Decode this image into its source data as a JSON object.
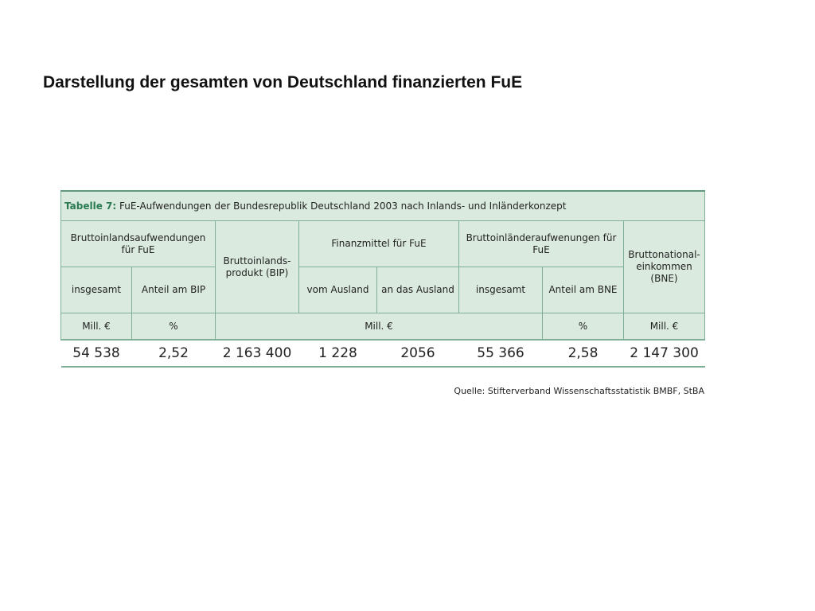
{
  "slide": {
    "title": "Darstellung der gesamten von Deutschland finanzierten FuE"
  },
  "table": {
    "caption_label": "Tabelle 7:",
    "caption_text": " FuE-Aufwendungen der Bundesrepublik Deutschland 2003 nach Inlands- und Inländerkonzept",
    "header": {
      "bruttoinland": "Bruttoinlandsaufwendungen für FuE",
      "bip": "Bruttoinlands-produkt (BIP)",
      "finanzmittel": "Finanzmittel für FuE",
      "bruttoinlaender": "Bruttoinländeraufwenungen für FuE",
      "bne": "Bruttonational-einkommen (BNE)",
      "insgesamt_1": "insgesamt",
      "anteil_bip": "Anteil am BIP",
      "vom_ausland": "vom Ausland",
      "an_das_ausland": "an das Ausland",
      "insgesamt_2": "insgesamt",
      "anteil_bne": "Anteil am BNE"
    },
    "units": {
      "mill_1": "Mill. €",
      "pct_1": "%",
      "mill_mid": "Mill. €",
      "pct_2": "%",
      "mill_2": "Mill. €"
    },
    "values": [
      "54 538",
      "2,52",
      "2 163 400",
      "1 228",
      "2056",
      "55 366",
      "2,58",
      "2 147 300"
    ],
    "source": "Quelle: Stifterverband Wissenschaftsstatistik BMBF, StBA"
  }
}
